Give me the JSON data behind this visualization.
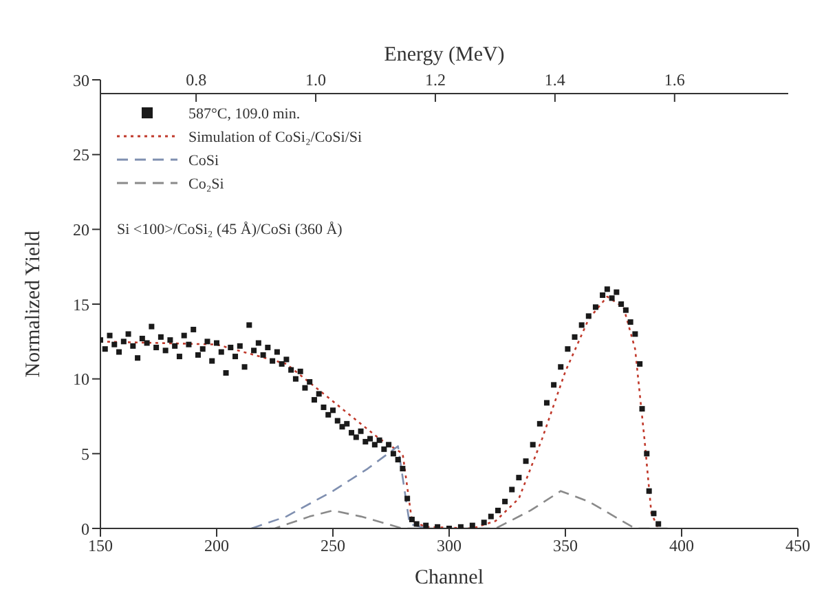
{
  "chart_data": {
    "type": "scatter",
    "xlabel": "Channel",
    "ylabel": "Normalized Yield",
    "x2label": "Energy (MeV)",
    "xlim": [
      150,
      450
    ],
    "xticks": [
      150,
      200,
      250,
      300,
      350,
      400,
      450
    ],
    "x2lim": [
      0.64,
      1.79
    ],
    "x2ticks": [
      0.8,
      {
        "value": 1.0,
        "label": "1.0"
      },
      1.2,
      1.4,
      1.6
    ],
    "ylim": [
      0,
      30
    ],
    "yticks": [
      0,
      5,
      10,
      15,
      20,
      25,
      30
    ],
    "grid": false,
    "legend": "top left",
    "annotations": [
      "Si <100>/CoSi₂ (45 Å)/CoSi (360 Å)"
    ],
    "series": [
      {
        "name": "587°C, 109.0 min.",
        "type": "scatter",
        "marker": "square",
        "color": "#1a1a1a",
        "x": [
          150,
          152,
          154,
          156,
          158,
          160,
          162,
          164,
          166,
          168,
          170,
          172,
          174,
          176,
          178,
          180,
          182,
          184,
          186,
          188,
          190,
          192,
          194,
          196,
          198,
          200,
          202,
          204,
          206,
          208,
          210,
          212,
          214,
          216,
          218,
          220,
          222,
          224,
          226,
          228,
          230,
          232,
          234,
          236,
          238,
          240,
          242,
          244,
          246,
          248,
          250,
          252,
          254,
          256,
          258,
          260,
          262,
          264,
          266,
          268,
          270,
          272,
          274,
          276,
          278,
          280,
          282,
          284,
          286,
          290,
          295,
          300,
          305,
          310,
          315,
          318,
          321,
          324,
          327,
          330,
          333,
          336,
          339,
          342,
          345,
          348,
          351,
          354,
          357,
          360,
          363,
          366,
          368,
          370,
          372,
          374,
          376,
          378,
          380,
          382,
          383,
          385,
          386,
          388,
          390
        ],
        "values": [
          12.6,
          12.0,
          12.9,
          12.3,
          11.8,
          12.5,
          13.0,
          12.2,
          11.4,
          12.7,
          12.4,
          13.5,
          12.1,
          12.8,
          11.9,
          12.6,
          12.2,
          11.5,
          12.9,
          12.3,
          13.3,
          11.6,
          12.0,
          12.5,
          11.2,
          12.4,
          11.8,
          10.4,
          12.1,
          11.5,
          12.2,
          10.8,
          13.6,
          11.9,
          12.4,
          11.6,
          12.1,
          11.2,
          11.8,
          11.0,
          11.3,
          10.6,
          10.0,
          10.5,
          9.4,
          9.8,
          8.6,
          9.0,
          8.1,
          7.6,
          7.9,
          7.2,
          6.8,
          7.0,
          6.4,
          6.1,
          6.5,
          5.8,
          6.0,
          5.6,
          5.9,
          5.3,
          5.6,
          5.0,
          4.6,
          4.0,
          2.0,
          0.6,
          0.3,
          0.2,
          0.1,
          0.0,
          0.1,
          0.2,
          0.4,
          0.8,
          1.2,
          1.8,
          2.6,
          3.4,
          4.5,
          5.6,
          7.0,
          8.4,
          9.6,
          10.8,
          12.0,
          12.8,
          13.6,
          14.2,
          14.8,
          15.6,
          16.0,
          15.4,
          15.8,
          15.0,
          14.6,
          13.8,
          13.0,
          11.0,
          8.0,
          5.0,
          2.5,
          1.0,
          0.3
        ]
      },
      {
        "name": "Simulation of CoSi₂/CoSi/Si",
        "type": "line",
        "line_style": "dotted",
        "color": "#c0392b",
        "x": [
          150,
          200,
          230,
          250,
          270,
          280,
          284,
          290,
          310,
          320,
          330,
          340,
          350,
          360,
          368,
          375,
          380,
          384,
          387,
          390
        ],
        "values": [
          12.5,
          12.3,
          11.0,
          8.5,
          6.0,
          5.0,
          0.5,
          0.1,
          0.0,
          0.5,
          2.0,
          6.0,
          10.5,
          14.0,
          15.5,
          14.8,
          12.0,
          6.0,
          1.0,
          0.0
        ]
      },
      {
        "name": "CoSi",
        "type": "line",
        "line_style": "dashed",
        "color": "#7f8fb0",
        "x": [
          215,
          230,
          250,
          265,
          278,
          283,
          290
        ],
        "values": [
          0,
          0.8,
          2.5,
          4.0,
          5.5,
          0.3,
          0
        ]
      },
      {
        "name": "Co₂Si",
        "type": "line",
        "line_style": "dashed",
        "color": "#8a8a8a",
        "x": [
          215,
          225,
          240,
          250,
          262,
          280,
          320,
          335,
          348,
          360,
          380,
          395
        ],
        "values": [
          0,
          0,
          0.8,
          1.2,
          0.8,
          0,
          0,
          1.2,
          2.5,
          1.8,
          0,
          0
        ]
      }
    ]
  }
}
